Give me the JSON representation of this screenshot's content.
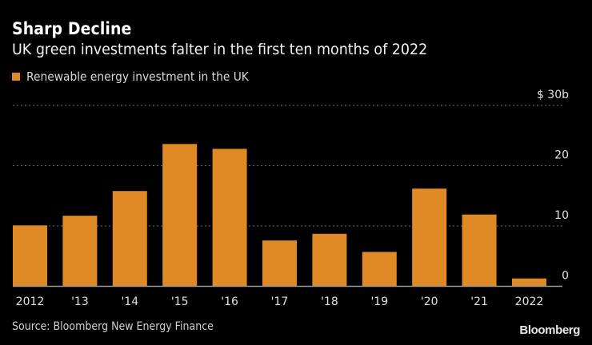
{
  "header": {
    "title": "Sharp Decline",
    "subtitle": "UK green investments falter in the first ten months of 2022"
  },
  "footer": {
    "source": "Source: Bloomberg New Energy Finance",
    "logo": "Bloomberg"
  },
  "colors": {
    "bar": "#e08a25",
    "background": "#000000",
    "grid": "#6e6e6e",
    "axis": "#9a9a9a"
  },
  "chart_data": {
    "type": "bar",
    "title": "Sharp Decline",
    "subtitle": "UK green investments falter in the first ten months of 2022",
    "xlabel": "",
    "ylabel": "",
    "legend": {
      "position": "top-left",
      "entries": [
        "Renewable energy investment in the UK"
      ]
    },
    "categories": [
      "2012",
      "'13",
      "'14",
      "'15",
      "'16",
      "'17",
      "'18",
      "'19",
      "'20",
      "'21",
      "2022"
    ],
    "series": [
      {
        "name": "Renewable energy investment in the UK",
        "values": [
          10.1,
          11.7,
          15.8,
          23.6,
          22.8,
          7.6,
          8.7,
          5.7,
          16.2,
          11.9,
          1.3
        ]
      }
    ],
    "y_ticks": [
      0,
      10,
      20,
      30
    ],
    "y_tick_labels": [
      "0",
      "10",
      "20",
      "$ 30b"
    ],
    "ylim": [
      0,
      30
    ],
    "y_unit": "USD billions",
    "y_axis_side": "right",
    "grid": true,
    "source": "Source: Bloomberg New Energy Finance"
  }
}
